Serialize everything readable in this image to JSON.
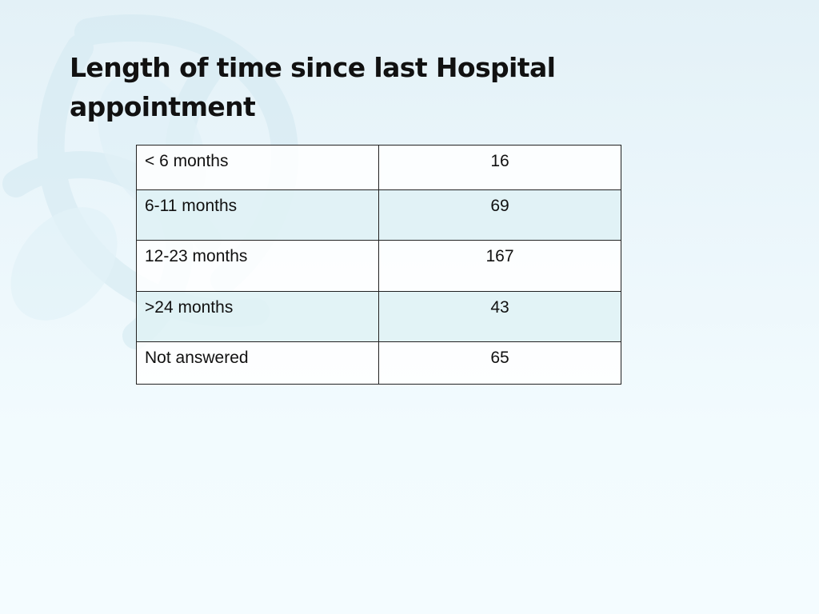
{
  "slide": {
    "title": "Length of time since last Hospital appointment"
  },
  "table": {
    "rows": [
      {
        "label": "< 6 months",
        "value": "16"
      },
      {
        "label": "6-11 months",
        "value": "69"
      },
      {
        "label": "12-23 months",
        "value": "167"
      },
      {
        "label": ">24 months",
        "value": "43"
      },
      {
        "label": "Not answered",
        "value": "65"
      }
    ]
  },
  "colors": {
    "background": "#eef8fc",
    "watermark": "#d9ecf3",
    "row_alt": "#e0f2f5",
    "border": "#222222"
  },
  "decor": {
    "watermark_icon": "leaf-watermark-icon"
  }
}
